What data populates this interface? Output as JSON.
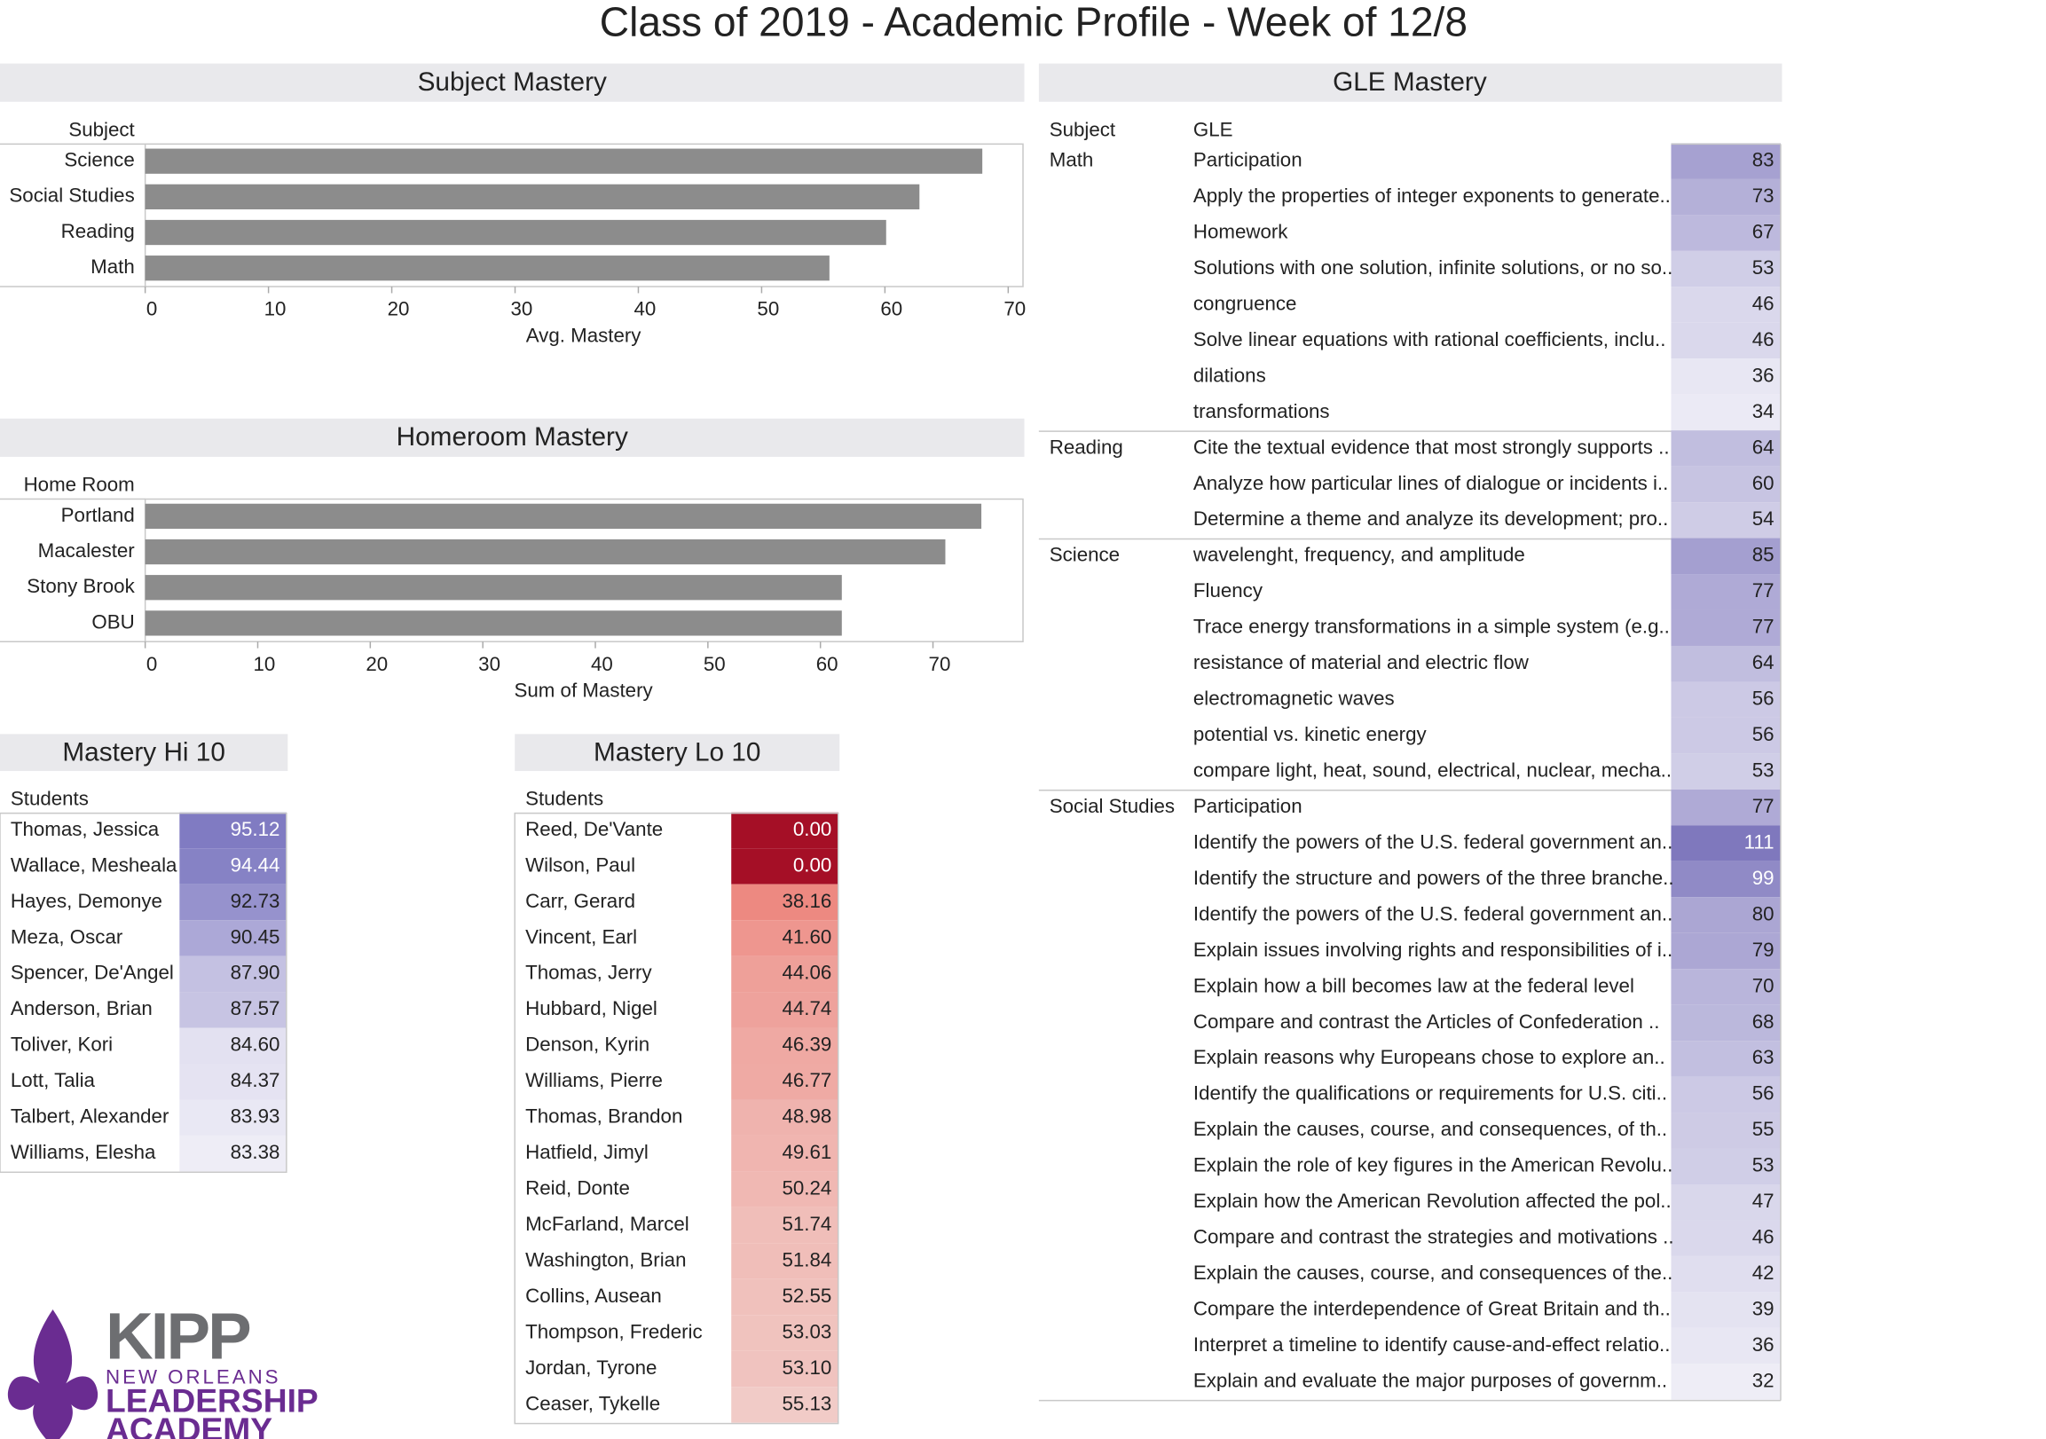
{
  "title": "Class of 2019 - Academic Profile - Week of 12/8",
  "chart_data": [
    {
      "type": "bar",
      "orientation": "horizontal",
      "title": "Subject Mastery",
      "category_label": "Subject",
      "x_label": "Avg. Mastery",
      "categories": [
        "Science",
        "Social Studies",
        "Reading",
        "Math"
      ],
      "values": [
        67.9,
        62.8,
        60.1,
        55.5
      ],
      "color": "#8c8c8c",
      "xlim": [
        0,
        71.2
      ],
      "xticks": [
        0,
        10,
        20,
        30,
        40,
        50,
        60,
        70
      ]
    },
    {
      "type": "bar",
      "orientation": "horizontal",
      "title": "Homeroom Mastery",
      "category_label": "Home Room",
      "x_label": "Sum of Mastery",
      "categories": [
        "Portland",
        "Macalester",
        "Stony Brook",
        "OBU"
      ],
      "values": [
        74.3,
        71.1,
        61.9,
        61.9
      ],
      "color": "#8c8c8c",
      "xlim": [
        0,
        78
      ],
      "xticks": [
        0,
        10,
        20,
        30,
        40,
        50,
        60,
        70
      ]
    }
  ],
  "tables": {
    "hi10": {
      "title": "Mastery Hi 10",
      "column": "Students",
      "color_scale": [
        "#eeedf6",
        "#807bc2"
      ],
      "names": [
        "Thomas, Jessica",
        "Wallace, Mesheala",
        "Hayes, Demonye",
        "Meza, Oscar",
        "Spencer, De'Angel",
        "Anderson, Brian",
        "Toliver, Kori",
        "Lott, Talia",
        "Talbert, Alexander",
        "Williams, Elesha"
      ],
      "values": [
        95.12,
        94.44,
        92.73,
        90.45,
        87.9,
        87.57,
        84.6,
        84.37,
        83.93,
        83.38
      ],
      "value_labels": [
        "95.12",
        "94.44",
        "92.73",
        "90.45",
        "87.90",
        "87.57",
        "84.60",
        "84.37",
        "83.93",
        "83.38"
      ]
    },
    "lo10": {
      "title": "Mastery Lo 10",
      "column": "Students",
      "color_scale": [
        "#a50f26",
        "#ea5f55",
        "#f1cbc7"
      ],
      "names": [
        "Reed, De'Vante",
        "Wilson, Paul",
        "Carr, Gerard",
        "Vincent, Earl",
        "Thomas, Jerry",
        "Hubbard, Nigel",
        "Denson, Kyrin",
        "Williams, Pierre",
        "Thomas, Brandon",
        "Hatfield, Jimyl",
        "Reid, Donte",
        "McFarland, Marcel",
        "Washington, Brian",
        "Collins, Ausean",
        "Thompson, Frederic",
        "Jordan, Tyrone",
        "Ceaser, Tykelle"
      ],
      "values": [
        0,
        0,
        38.16,
        41.6,
        44.06,
        44.74,
        46.39,
        46.77,
        48.98,
        49.61,
        50.24,
        51.74,
        51.84,
        52.55,
        53.03,
        53.1,
        55.13
      ],
      "value_labels": [
        "0.00",
        "0.00",
        "38.16",
        "41.60",
        "44.06",
        "44.74",
        "46.39",
        "46.77",
        "48.98",
        "49.61",
        "50.24",
        "51.74",
        "51.84",
        "52.55",
        "53.03",
        "53.10",
        "55.13"
      ]
    },
    "gle": {
      "title": "GLE Mastery",
      "headers": [
        "Subject",
        "GLE"
      ],
      "color_scale": [
        "#eeedf6",
        "#7f78bd"
      ],
      "groups": [
        {
          "subject": "Math",
          "rows": [
            {
              "gle": "Participation",
              "value": 83
            },
            {
              "gle": "Apply the properties of integer exponents to generate..",
              "value": 73
            },
            {
              "gle": "Homework",
              "value": 67
            },
            {
              "gle": "Solutions with one solution, infinite solutions, or no so..",
              "value": 53
            },
            {
              "gle": "congruence",
              "value": 46
            },
            {
              "gle": "Solve linear equations with rational coefficients, inclu..",
              "value": 46
            },
            {
              "gle": "dilations",
              "value": 36
            },
            {
              "gle": "transformations",
              "value": 34
            }
          ]
        },
        {
          "subject": "Reading",
          "rows": [
            {
              "gle": "Cite the textual evidence that most strongly supports ..",
              "value": 64
            },
            {
              "gle": "Analyze how particular lines of dialogue or incidents i..",
              "value": 60
            },
            {
              "gle": "Determine a theme and analyze its development; pro..",
              "value": 54
            }
          ]
        },
        {
          "subject": "Science",
          "rows": [
            {
              "gle": "wavelenght, frequency, and amplitude",
              "value": 85
            },
            {
              "gle": "Fluency",
              "value": 77
            },
            {
              "gle": "Trace energy transformations in a simple system (e.g..",
              "value": 77
            },
            {
              "gle": "resistance of material and electric flow",
              "value": 64
            },
            {
              "gle": "electromagnetic waves",
              "value": 56
            },
            {
              "gle": "potential vs. kinetic energy",
              "value": 56
            },
            {
              "gle": "compare light, heat, sound, electrical, nuclear, mecha..",
              "value": 53
            }
          ]
        },
        {
          "subject": "Social Studies",
          "rows": [
            {
              "gle": "Participation",
              "value": 77
            },
            {
              "gle": "Identify the powers of the U.S. federal government an..",
              "value": 111
            },
            {
              "gle": "Identify the structure and powers of the three branche..",
              "value": 99
            },
            {
              "gle": "Identify the powers of the U.S. federal government an..",
              "value": 80
            },
            {
              "gle": "Explain issues involving rights and responsibilities of i..",
              "value": 79
            },
            {
              "gle": "Explain how a bill becomes law at the federal level",
              "value": 70
            },
            {
              "gle": "Compare and contrast the Articles of Confederation ..",
              "value": 68
            },
            {
              "gle": "Explain reasons why Europeans chose to explore an..",
              "value": 63
            },
            {
              "gle": "Identify the qualifications or requirements for U.S. citi..",
              "value": 56
            },
            {
              "gle": "Explain the causes, course, and consequences, of th..",
              "value": 55
            },
            {
              "gle": "Explain the role of key figures in the American Revolu..",
              "value": 53
            },
            {
              "gle": "Explain how the American Revolution affected the pol..",
              "value": 47
            },
            {
              "gle": "Compare and contrast the strategies and motivations ..",
              "value": 46
            },
            {
              "gle": "Explain the causes, course, and consequences of the..",
              "value": 42
            },
            {
              "gle": "Compare the interdependence of Great Britain and th..",
              "value": 39
            },
            {
              "gle": "Interpret a timeline to identify cause-and-effect relatio..",
              "value": 36
            },
            {
              "gle": "Explain and evaluate the major purposes of governm..",
              "value": 32
            }
          ]
        }
      ]
    }
  },
  "logo": {
    "name": "KIPP",
    "lines": [
      "NEW ORLEANS",
      "LEADERSHIP",
      "ACADEMY"
    ]
  }
}
